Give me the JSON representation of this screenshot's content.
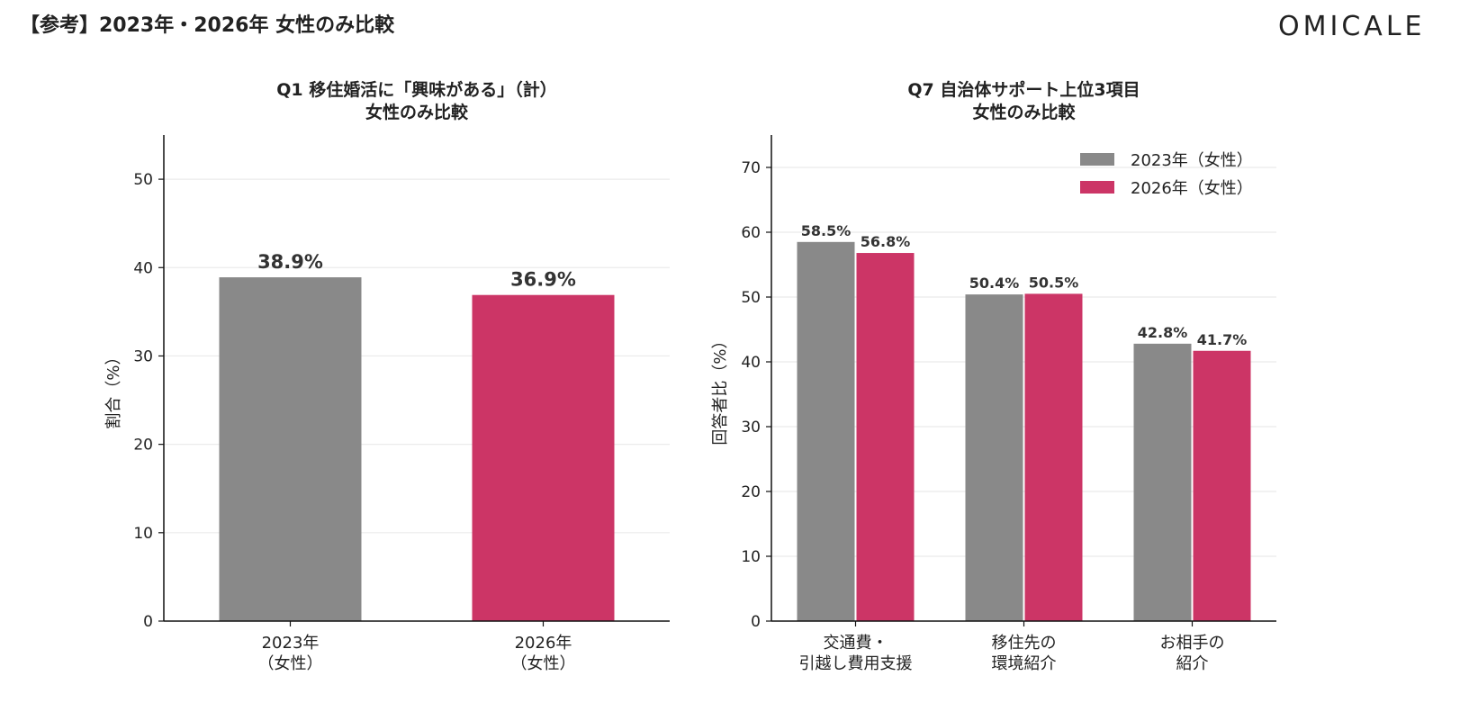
{
  "header": {
    "title": "【参考】2023年・2026年 女性のみ比較",
    "brand": "OMICALE"
  },
  "colors": {
    "series_2023": "#898989",
    "series_2026": "#cc3566",
    "grid": "#ebebeb",
    "axis": "#111111"
  },
  "chart_data": [
    {
      "type": "bar",
      "title": "Q1 移住婚活に「興味がある」（計）",
      "subtitle": "女性のみ比較",
      "categories": [
        "2023年\n（女性）",
        "2026年\n（女性）"
      ],
      "values": [
        38.9,
        36.9
      ],
      "data_labels": [
        "38.9%",
        "36.9%"
      ],
      "xlabel": "",
      "ylabel": "割合（%）",
      "ylim": [
        0,
        55
      ],
      "yticks": [
        0,
        10,
        20,
        30,
        40,
        50
      ],
      "grid": true
    },
    {
      "type": "bar",
      "title": "Q7 自治体サポート上位3項目",
      "subtitle": "女性のみ比較",
      "categories": [
        "交通費・\n引越し費用支援",
        "移住先の\n環境紹介",
        "お相手の\n紹介"
      ],
      "series": [
        {
          "name": "2023年（女性）",
          "values": [
            58.5,
            50.4,
            42.8
          ],
          "data_labels": [
            "58.5%",
            "50.4%",
            "42.8%"
          ]
        },
        {
          "name": "2026年（女性）",
          "values": [
            56.8,
            50.5,
            41.7
          ],
          "data_labels": [
            "56.8%",
            "50.5%",
            "41.7%"
          ]
        }
      ],
      "xlabel": "",
      "ylabel": "回答者比（%）",
      "ylim": [
        0,
        75
      ],
      "yticks": [
        0,
        10,
        20,
        30,
        40,
        50,
        60,
        70
      ],
      "legend_position": "top-right",
      "grid": true
    }
  ]
}
